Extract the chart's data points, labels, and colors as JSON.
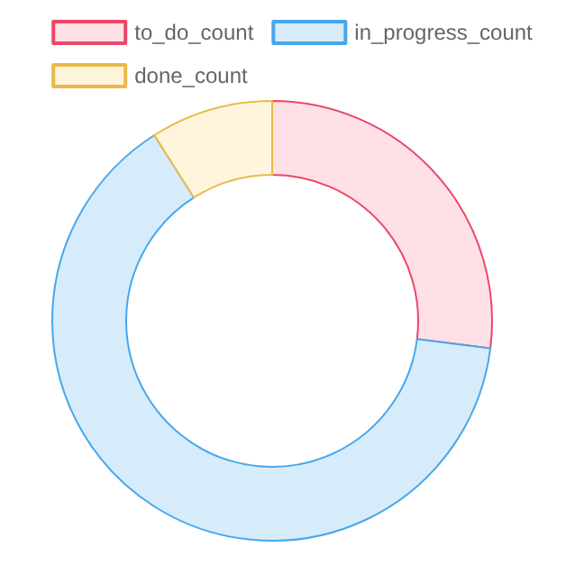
{
  "chart_data": {
    "type": "donut",
    "categories": [
      "to_do_count",
      "in_progress_count",
      "done_count"
    ],
    "values": [
      27,
      64,
      9
    ],
    "colors": [
      "#ffe0e6",
      "#d7ecfb",
      "#fff5dd"
    ],
    "legend": "top"
  }
}
